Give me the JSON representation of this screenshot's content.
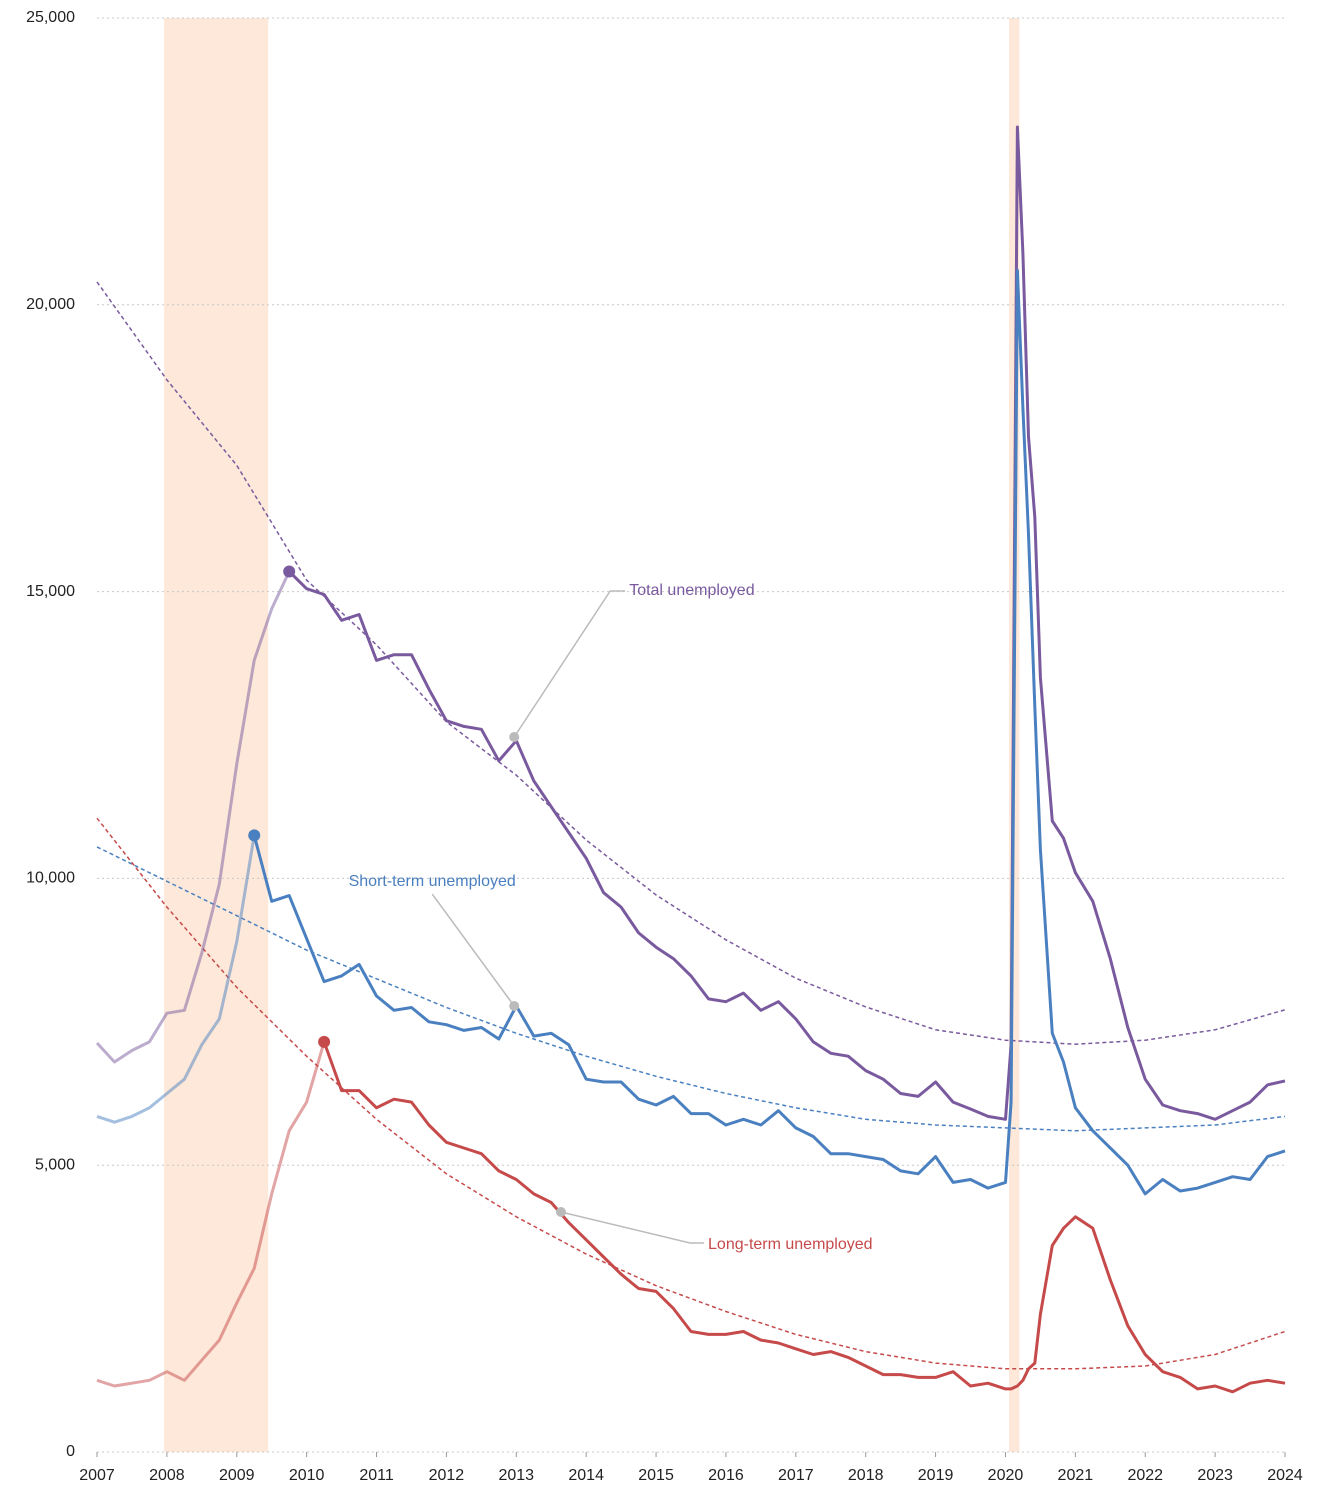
{
  "chart_data": {
    "type": "line",
    "xlim": [
      2007,
      2024
    ],
    "ylim": [
      0,
      25000
    ],
    "xticks": [
      2007,
      2008,
      2009,
      2010,
      2011,
      2012,
      2013,
      2014,
      2015,
      2016,
      2017,
      2018,
      2019,
      2020,
      2021,
      2022,
      2023,
      2024
    ],
    "yticks": [
      0,
      {
        "value": 5000,
        "label": "5,000"
      },
      {
        "value": 10000,
        "label": "10,000"
      },
      {
        "value": 15000,
        "label": "15,000"
      },
      {
        "value": 20000,
        "label": "20,000"
      },
      {
        "value": 25000,
        "label": "25,000"
      }
    ],
    "grid": true,
    "recessions": [
      [
        2007.96,
        2009.45
      ],
      [
        2020.05,
        2020.2
      ]
    ],
    "recession_color": "#fde8d9",
    "x": [
      2007.0,
      2007.25,
      2007.5,
      2007.75,
      2008.0,
      2008.25,
      2008.5,
      2008.75,
      2009.0,
      2009.25,
      2009.5,
      2009.75,
      2010.0,
      2010.25,
      2010.5,
      2010.75,
      2011.0,
      2011.25,
      2011.5,
      2011.75,
      2012.0,
      2012.25,
      2012.5,
      2012.75,
      2013.0,
      2013.25,
      2013.5,
      2013.75,
      2014.0,
      2014.25,
      2014.5,
      2014.75,
      2015.0,
      2015.25,
      2015.5,
      2015.75,
      2016.0,
      2016.25,
      2016.5,
      2016.75,
      2017.0,
      2017.25,
      2017.5,
      2017.75,
      2018.0,
      2018.25,
      2018.5,
      2018.75,
      2019.0,
      2019.25,
      2019.5,
      2019.75,
      2020.0,
      2020.08,
      2020.17,
      2020.25,
      2020.33,
      2020.42,
      2020.5,
      2020.67,
      2020.83,
      2021.0,
      2021.25,
      2021.5,
      2021.75,
      2022.0,
      2022.25,
      2022.5,
      2022.75,
      2023.0,
      2023.25,
      2023.5,
      2023.75,
      2024.0
    ],
    "trend_x": [
      2007,
      2008,
      2009,
      2010,
      2011,
      2012,
      2013,
      2014,
      2015,
      2016,
      2017,
      2018,
      2019,
      2020,
      2021,
      2022,
      2023,
      2024
    ],
    "series": [
      {
        "name": "Total unemployed",
        "color": "#7a5a9e",
        "marker_x": 2009.75,
        "values": [
          7130,
          6800,
          7000,
          7150,
          7650,
          7700,
          8700,
          9900,
          12000,
          13800,
          14700,
          15350,
          15050,
          14950,
          14500,
          14600,
          13800,
          13900,
          13900,
          13300,
          12750,
          12650,
          12600,
          12050,
          12400,
          11700,
          11250,
          10800,
          10350,
          9750,
          9500,
          9050,
          8800,
          8600,
          8300,
          7900,
          7850,
          8000,
          7700,
          7850,
          7550,
          7150,
          6950,
          6900,
          6650,
          6500,
          6250,
          6200,
          6450,
          6100,
          5980,
          5850,
          5800,
          7100,
          23100,
          20900,
          17700,
          16300,
          13500,
          11000,
          10700,
          10100,
          9600,
          8600,
          7400,
          6500,
          6050,
          5950,
          5900,
          5800,
          5950,
          6100,
          6400,
          6470
        ],
        "trend": [
          20400,
          18690,
          17200,
          15200,
          14070,
          12730,
          11800,
          10670,
          9710,
          8930,
          8260,
          7760,
          7360,
          7180,
          7110,
          7180,
          7360,
          7710
        ]
      },
      {
        "name": "Short-term unemployed",
        "color": "#4a80c0",
        "marker_x": 2009.25,
        "values": [
          5850,
          5750,
          5850,
          6000,
          6250,
          6500,
          7100,
          7550,
          8900,
          10750,
          9600,
          9700,
          8950,
          8200,
          8300,
          8500,
          7950,
          7700,
          7750,
          7500,
          7450,
          7350,
          7400,
          7200,
          7775,
          7250,
          7300,
          7100,
          6500,
          6450,
          6450,
          6150,
          6050,
          6200,
          5900,
          5900,
          5700,
          5800,
          5700,
          5950,
          5650,
          5500,
          5200,
          5200,
          5150,
          5100,
          4900,
          4850,
          5150,
          4700,
          4750,
          4600,
          4700,
          6100,
          20600,
          18200,
          16000,
          13000,
          10500,
          7300,
          6800,
          6000,
          5600,
          5300,
          5000,
          4500,
          4750,
          4550,
          4600,
          4700,
          4800,
          4750,
          5150,
          5250
        ],
        "trend": [
          10550,
          9950,
          9350,
          8750,
          8250,
          7750,
          7300,
          6900,
          6550,
          6250,
          6000,
          5800,
          5700,
          5650,
          5600,
          5650,
          5700,
          5850
        ]
      },
      {
        "name": "Long-term unemployed",
        "color": "#c64a4a",
        "marker_x": 2010.25,
        "values": [
          1250,
          1150,
          1200,
          1250,
          1400,
          1250,
          1600,
          1950,
          2600,
          3200,
          4500,
          5600,
          6100,
          7150,
          6300,
          6300,
          6000,
          6150,
          6100,
          5700,
          5400,
          5300,
          5200,
          4900,
          4750,
          4500,
          4350,
          4000,
          3700,
          3400,
          3100,
          2850,
          2800,
          2500,
          2100,
          2050,
          2050,
          2100,
          1950,
          1900,
          1800,
          1700,
          1750,
          1650,
          1500,
          1350,
          1350,
          1300,
          1300,
          1400,
          1150,
          1200,
          1100,
          1100,
          1150,
          1250,
          1450,
          1550,
          2400,
          3600,
          3900,
          4100,
          3900,
          3000,
          2200,
          1700,
          1400,
          1300,
          1100,
          1150,
          1050,
          1200,
          1250,
          1200
        ],
        "trend": [
          11050,
          9500,
          8100,
          6900,
          5800,
          4850,
          4100,
          3450,
          2900,
          2450,
          2050,
          1750,
          1550,
          1450,
          1450,
          1500,
          1700,
          2100
        ]
      }
    ],
    "annotations": [
      {
        "text": "Total unemployed",
        "x": 2012.97,
        "y": 12465,
        "color": "#7a5a9e"
      },
      {
        "text": "Short-term unemployed",
        "x": 2012.97,
        "y": 7775,
        "color": "#4a80c0"
      },
      {
        "text": "Long-term unemployed",
        "x": 2013.64,
        "y": 4184,
        "color": "#c64a4a"
      }
    ]
  }
}
